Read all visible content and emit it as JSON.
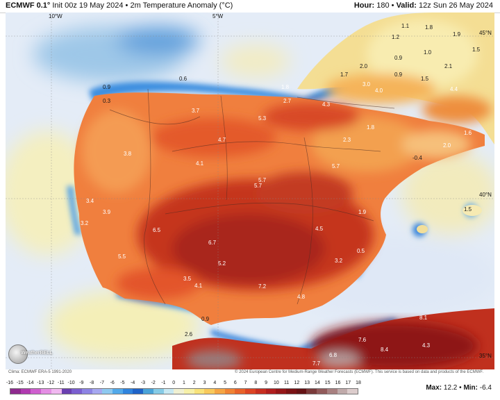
{
  "header": {
    "model": "ECMWF 0.1°",
    "init": "Init 00z 19 May 2024",
    "bullet": "•",
    "parameter": "2m Temperature Anomaly (°C)",
    "hour_label": "Hour:",
    "hour_value": "180",
    "valid_label": "Valid:",
    "valid_value": "12z Sun 26 May 2024"
  },
  "map": {
    "coords": {
      "w10": "10°W",
      "w5": "5°W",
      "n45": "45°N",
      "n40": "40°N",
      "n35": "35°N"
    },
    "values": [
      {
        "id": "v1",
        "text": "1.1"
      },
      {
        "id": "v2",
        "text": "1.8"
      },
      {
        "id": "v3",
        "text": "1.9"
      },
      {
        "id": "v4",
        "text": "1.2"
      },
      {
        "id": "v5",
        "text": "1.0"
      },
      {
        "id": "v6",
        "text": "1.5"
      },
      {
        "id": "v7",
        "text": "0.9"
      },
      {
        "id": "v8",
        "text": "2.0"
      },
      {
        "id": "v9",
        "text": "2.1"
      },
      {
        "id": "v10",
        "text": "1.7"
      },
      {
        "id": "v11",
        "text": "0.9"
      },
      {
        "id": "v12",
        "text": "1.5"
      },
      {
        "id": "v13",
        "text": "3.0"
      },
      {
        "id": "v14",
        "text": "4.0"
      },
      {
        "id": "v15",
        "text": "4.4"
      },
      {
        "id": "v16",
        "text": "0.9"
      },
      {
        "id": "v17",
        "text": "0.6"
      },
      {
        "id": "v18",
        "text": "1.8"
      },
      {
        "id": "v19",
        "text": "0.3"
      },
      {
        "id": "v20",
        "text": "2.7"
      },
      {
        "id": "v21",
        "text": "4.3"
      },
      {
        "id": "v22",
        "text": "3.7"
      },
      {
        "id": "v23",
        "text": "5.3"
      },
      {
        "id": "v24",
        "text": "1.8"
      },
      {
        "id": "v25",
        "text": "1.6"
      },
      {
        "id": "v26",
        "text": "4.7"
      },
      {
        "id": "v27",
        "text": "2.3"
      },
      {
        "id": "v28",
        "text": "2.0"
      },
      {
        "id": "v29",
        "text": "3.8"
      },
      {
        "id": "v30",
        "text": "-0.4"
      },
      {
        "id": "v31",
        "text": "4.1"
      },
      {
        "id": "v32",
        "text": "5.7"
      },
      {
        "id": "v33",
        "text": "5.7"
      },
      {
        "id": "v34",
        "text": "5.7"
      },
      {
        "id": "v35",
        "text": "3.4"
      },
      {
        "id": "v36",
        "text": "1.5"
      },
      {
        "id": "v37",
        "text": "3.9"
      },
      {
        "id": "v38",
        "text": "1.9"
      },
      {
        "id": "v39",
        "text": "3.2"
      },
      {
        "id": "v40",
        "text": "6.5"
      },
      {
        "id": "v41",
        "text": "4.5"
      },
      {
        "id": "v42",
        "text": "6.7"
      },
      {
        "id": "v43",
        "text": "5.5"
      },
      {
        "id": "v44",
        "text": "0.5"
      },
      {
        "id": "v45",
        "text": "5.2"
      },
      {
        "id": "v46",
        "text": "3.2"
      },
      {
        "id": "v47",
        "text": "3.5"
      },
      {
        "id": "v48",
        "text": "4.1"
      },
      {
        "id": "v49",
        "text": "7.2"
      },
      {
        "id": "v50",
        "text": "4.8"
      },
      {
        "id": "v51",
        "text": "0.9"
      },
      {
        "id": "v52",
        "text": "8.1"
      },
      {
        "id": "v53",
        "text": "2.6"
      },
      {
        "id": "v54",
        "text": "7.6"
      },
      {
        "id": "v55",
        "text": "8.4"
      },
      {
        "id": "v56",
        "text": "4.3"
      },
      {
        "id": "v57",
        "text": "6.8"
      },
      {
        "id": "v58",
        "text": "7.7"
      }
    ]
  },
  "logo_text": "WeatherBELL",
  "footer": {
    "climatology": "Clima: ECMWF ERA-5 1991-2020",
    "credit": "© 2024 European Centre for Medium-Range Weather Forecasts (ECMWF). This service is based on data and products of the ECMWF.",
    "max_label": "Max:",
    "max_value": "12.2",
    "sep": "•",
    "min_label": "Min:",
    "min_value": "-6.4"
  },
  "legend": {
    "ticks": [
      "-16",
      "-15",
      "-14",
      "-13",
      "-12",
      "-11",
      "-10",
      "-9",
      "-8",
      "-7",
      "-6",
      "-5",
      "-4",
      "-3",
      "-2",
      "-1",
      "0",
      "1",
      "2",
      "3",
      "4",
      "5",
      "6",
      "7",
      "8",
      "9",
      "10",
      "11",
      "12",
      "13",
      "14",
      "15",
      "16",
      "17",
      "18"
    ],
    "colors": [
      "#8e2a8e",
      "#b03ab0",
      "#cf5fcf",
      "#e48ee4",
      "#f0b8f0",
      "#6a3fb0",
      "#7b5fd0",
      "#8d84e4",
      "#a6a8f0",
      "#8ec9f0",
      "#52a9ea",
      "#2f84de",
      "#1f63c8",
      "#4aa3d8",
      "#86cbe6",
      "#c7e8f2",
      "#f0f0d2",
      "#f6f0a8",
      "#f8e27a",
      "#f8c95c",
      "#f5a544",
      "#f08334",
      "#e8622a",
      "#dc4424",
      "#c72e20",
      "#b01e1e",
      "#951618",
      "#7a1214",
      "#641214",
      "#7a3a3a",
      "#915a5a",
      "#a88080",
      "#c0aaaa",
      "#dccccc"
    ]
  }
}
